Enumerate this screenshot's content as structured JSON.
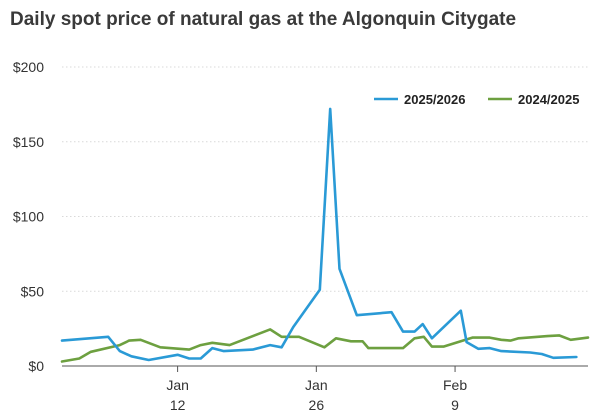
{
  "title": "Daily spot price of natural gas at the Algonquin Citygate",
  "chart_data": {
    "type": "line",
    "title": "Daily spot price of natural gas at the Algonquin Citygate",
    "xlabel": "",
    "ylabel": "",
    "xlim": [
      0,
      45.5
    ],
    "ylim": [
      0,
      200
    ],
    "yticks": [
      0,
      50,
      100,
      150,
      200
    ],
    "ytick_labels": [
      "$0",
      "$50",
      "$100",
      "$150",
      "$200"
    ],
    "xticks": [
      {
        "x": 10,
        "line1": "Jan",
        "line2": "12"
      },
      {
        "x": 22,
        "line1": "Jan",
        "line2": "26"
      },
      {
        "x": 34,
        "line1": "Feb",
        "line2": "9"
      }
    ],
    "grid": true,
    "legend": "top-right",
    "series": [
      {
        "name": "2025/2026",
        "color": "#2a9ad6",
        "points": [
          [
            0,
            17
          ],
          [
            4,
            19.5
          ],
          [
            5,
            10
          ],
          [
            6,
            6.5
          ],
          [
            7.5,
            4
          ],
          [
            10,
            7.5
          ],
          [
            11,
            5
          ],
          [
            12,
            5
          ],
          [
            13,
            12
          ],
          [
            14,
            10
          ],
          [
            16.5,
            11
          ],
          [
            18,
            14
          ],
          [
            19,
            12.5
          ],
          [
            20,
            26
          ],
          [
            22.3,
            51
          ],
          [
            23.2,
            172
          ],
          [
            24,
            65
          ],
          [
            25.5,
            34
          ],
          [
            28.5,
            36
          ],
          [
            29.5,
            23
          ],
          [
            30.5,
            23
          ],
          [
            31.2,
            28
          ],
          [
            32,
            18.5
          ],
          [
            34.5,
            37
          ],
          [
            35,
            16
          ],
          [
            36,
            11.5
          ],
          [
            37,
            12
          ],
          [
            38,
            10
          ],
          [
            40.5,
            9
          ],
          [
            41.5,
            8
          ],
          [
            42.5,
            5.5
          ],
          [
            44.5,
            6
          ]
        ]
      },
      {
        "name": "2024/2025",
        "color": "#6da040",
        "points": [
          [
            0,
            3
          ],
          [
            1.5,
            5
          ],
          [
            2.5,
            9.5
          ],
          [
            5,
            14
          ],
          [
            5.8,
            17
          ],
          [
            6.8,
            17.5
          ],
          [
            8.5,
            12.5
          ],
          [
            11,
            11
          ],
          [
            12,
            14
          ],
          [
            13,
            15.5
          ],
          [
            14.5,
            14
          ],
          [
            18,
            24.5
          ],
          [
            19,
            19.5
          ],
          [
            20.5,
            19.5
          ],
          [
            22.7,
            12.5
          ],
          [
            23.7,
            18.5
          ],
          [
            25,
            16.5
          ],
          [
            26,
            16.5
          ],
          [
            26.5,
            12
          ],
          [
            29.5,
            12
          ],
          [
            30.5,
            18.5
          ],
          [
            31.3,
            19.5
          ],
          [
            32,
            13
          ],
          [
            33,
            13
          ],
          [
            35.5,
            19
          ],
          [
            37,
            19
          ],
          [
            38,
            17.5
          ],
          [
            38.8,
            17
          ],
          [
            39.5,
            18.5
          ],
          [
            42,
            20
          ],
          [
            43,
            20.5
          ],
          [
            44,
            17.5
          ],
          [
            45.5,
            19
          ]
        ]
      }
    ]
  }
}
